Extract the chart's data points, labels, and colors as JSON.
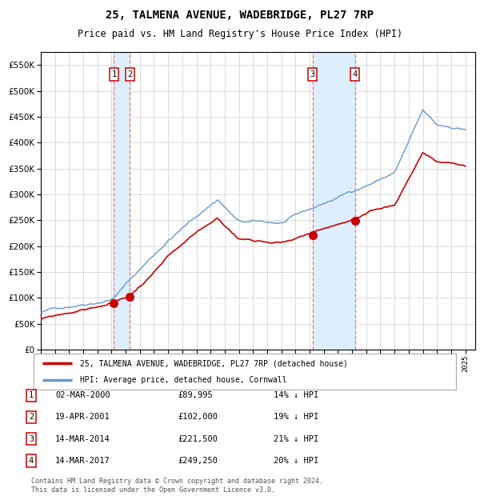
{
  "title": "25, TALMENA AVENUE, WADEBRIDGE, PL27 7RP",
  "subtitle": "Price paid vs. HM Land Registry's House Price Index (HPI)",
  "legend_label_red": "25, TALMENA AVENUE, WADEBRIDGE, PL27 7RP (detached house)",
  "legend_label_blue": "HPI: Average price, detached house, Cornwall",
  "footer": "Contains HM Land Registry data © Crown copyright and database right 2024.\nThis data is licensed under the Open Government Licence v3.0.",
  "transactions": [
    {
      "num": 1,
      "date": "02-MAR-2000",
      "price": 89995,
      "hpi_diff": "14% ↓ HPI",
      "x_year": 2000.17
    },
    {
      "num": 2,
      "date": "19-APR-2001",
      "price": 102000,
      "hpi_diff": "19% ↓ HPI",
      "x_year": 2001.29
    },
    {
      "num": 3,
      "date": "14-MAR-2014",
      "price": 221500,
      "hpi_diff": "21% ↓ HPI",
      "x_year": 2014.2
    },
    {
      "num": 4,
      "date": "14-MAR-2017",
      "price": 249250,
      "hpi_diff": "20% ↓ HPI",
      "x_year": 2017.2
    }
  ],
  "ylim": [
    0,
    575000
  ],
  "xlim_start": 1995.0,
  "xlim_end": 2025.7,
  "grid_color": "#cccccc",
  "background_color": "#ffffff",
  "red_line_color": "#cc0000",
  "blue_line_color": "#6699cc",
  "shade_color": "#ddeeff",
  "vline_color": "#ff6666",
  "dot_color": "#cc0000",
  "title_fontsize": 10,
  "subtitle_fontsize": 8.5
}
